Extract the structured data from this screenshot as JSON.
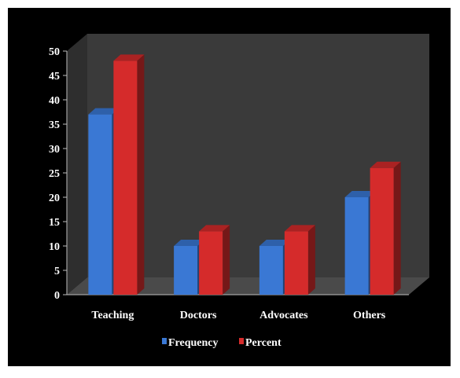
{
  "chart_data": {
    "type": "bar",
    "categories": [
      "Teaching",
      "Doctors",
      "Advocates",
      "Others"
    ],
    "series": [
      {
        "name": "Frequency",
        "values": [
          37,
          10,
          10,
          20
        ],
        "color": "#3a78d4"
      },
      {
        "name": "Percent",
        "values": [
          48,
          13,
          13,
          26
        ],
        "color": "#d52b2b"
      }
    ],
    "ylim": [
      0,
      50
    ],
    "yticks": [
      "0",
      "5",
      "10",
      "15",
      "20",
      "25",
      "30",
      "35",
      "40",
      "45",
      "50"
    ],
    "legend_position": "bottom",
    "grid": false,
    "background": "#000000",
    "plot_wall_color": "#3a3a3a",
    "plot_floor_color": "#4a4a4a"
  }
}
